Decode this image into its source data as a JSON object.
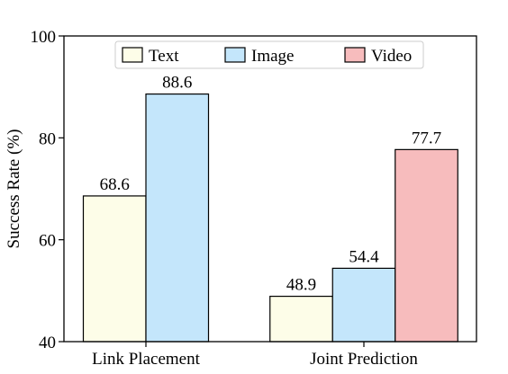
{
  "chart_data": {
    "type": "bar",
    "categories": [
      "Link Placement",
      "Joint Prediction"
    ],
    "series": [
      {
        "name": "Text",
        "values": [
          68.6,
          48.9
        ],
        "color": "#fdfde8"
      },
      {
        "name": "Image",
        "values": [
          88.6,
          54.4
        ],
        "color": "#c4e6fb"
      },
      {
        "name": "Video",
        "values": [
          null,
          77.7
        ],
        "color": "#f7bcbd"
      }
    ],
    "title": "",
    "xlabel": "",
    "ylabel": "Success Rate (%)",
    "ylim": [
      40,
      100
    ],
    "yticks": [
      40,
      60,
      80,
      100
    ],
    "grid": false,
    "legend_position": "top-center"
  }
}
